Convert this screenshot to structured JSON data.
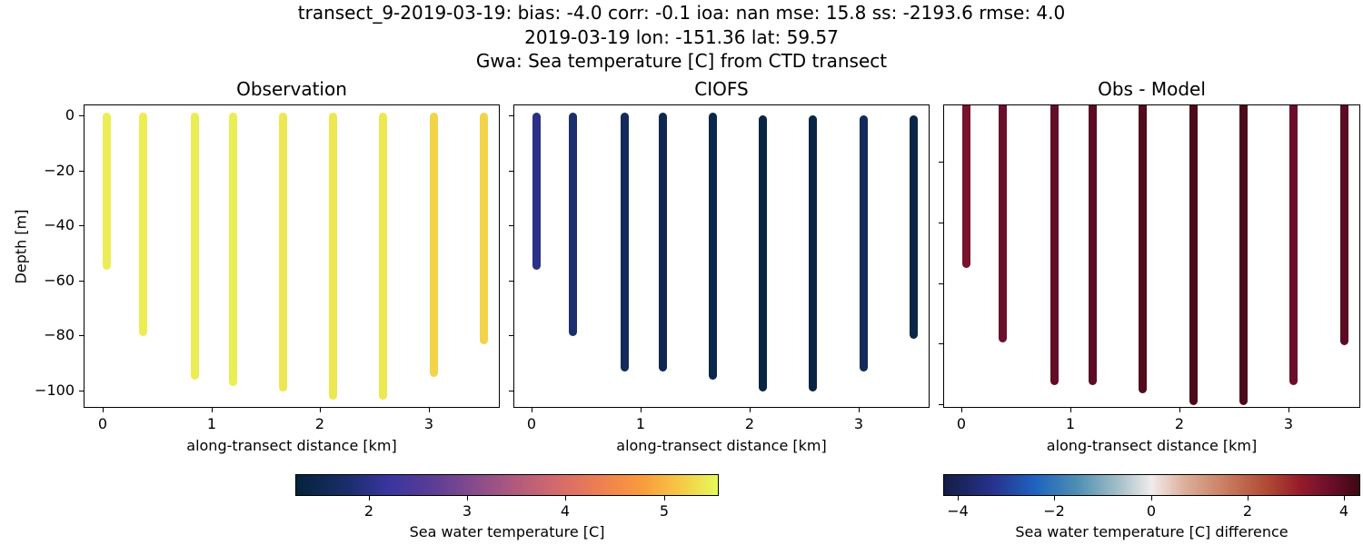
{
  "figure": {
    "suptitle_line1": "transect_9-2019-03-19: bias: -4.0  corr: -0.1  ioa: nan  mse: 15.8  ss: -2193.6  rmse: 4.0",
    "suptitle_line2": "2019-03-19 lon: -151.36 lat: 59.57",
    "suptitle_line3": "Gwa: Sea temperature [C] from CTD transect"
  },
  "panels": {
    "obs": {
      "title": "Observation",
      "xlabel": "along-transect distance [km]",
      "ylabel": "Depth [m]"
    },
    "model": {
      "title": "CIOFS",
      "xlabel": "along-transect distance [km]"
    },
    "diff": {
      "title": "Obs - Model",
      "xlabel": "along-transect distance [km]"
    }
  },
  "ticks": {
    "y": [
      "0",
      "−20",
      "−40",
      "−60",
      "−80",
      "−100"
    ],
    "x": [
      "0",
      "1",
      "2",
      "3"
    ]
  },
  "colorbars": {
    "temp": {
      "label": "Sea water temperature [C]",
      "ticks": [
        "2",
        "3",
        "4",
        "5"
      ],
      "range": [
        1.25,
        5.6
      ]
    },
    "diff": {
      "label": "Sea water temperature [C] difference",
      "ticks": [
        "−4",
        "−2",
        "0",
        "2",
        "4"
      ],
      "range": [
        -4.3,
        4.3
      ]
    }
  },
  "chart_data": [
    {
      "type": "scatter",
      "title": "Observation",
      "xlabel": "along-transect distance [km]",
      "ylabel": "Depth [m]",
      "xlim": [
        -0.2,
        3.6
      ],
      "ylim": [
        -105,
        4
      ],
      "colormap": "thermal",
      "casts": [
        {
          "x": 0.0,
          "depth_min": 0,
          "depth_max": -54,
          "temp": 5.5
        },
        {
          "x": 0.34,
          "depth_min": 0,
          "depth_max": -78,
          "temp": 5.5
        },
        {
          "x": 0.81,
          "depth_min": 0,
          "depth_max": -94,
          "temp": 5.5
        },
        {
          "x": 1.16,
          "depth_min": 0,
          "depth_max": -96,
          "temp": 5.5
        },
        {
          "x": 1.62,
          "depth_min": 0,
          "depth_max": -98,
          "temp": 5.45
        },
        {
          "x": 2.08,
          "depth_min": 0,
          "depth_max": -101,
          "temp": 5.45
        },
        {
          "x": 2.54,
          "depth_min": 0,
          "depth_max": -101,
          "temp": 5.45
        },
        {
          "x": 3.0,
          "depth_min": 0,
          "depth_max": -93,
          "temp": 5.3
        },
        {
          "x": 3.46,
          "depth_min": 0,
          "depth_max": -81,
          "temp": 5.3
        }
      ]
    },
    {
      "type": "scatter",
      "title": "CIOFS",
      "xlabel": "along-transect distance [km]",
      "xlim": [
        -0.2,
        3.6
      ],
      "ylim": [
        -105,
        4
      ],
      "colormap": "thermal",
      "casts": [
        {
          "x": 0.0,
          "depth_min": 0,
          "depth_max": -54,
          "temp": 2.0
        },
        {
          "x": 0.34,
          "depth_min": 0,
          "depth_max": -78,
          "temp": 1.8
        },
        {
          "x": 0.81,
          "depth_min": 0,
          "depth_max": -91,
          "temp": 1.6
        },
        {
          "x": 1.16,
          "depth_min": 0,
          "depth_max": -91,
          "temp": 1.5
        },
        {
          "x": 1.62,
          "depth_min": 0,
          "depth_max": -94,
          "temp": 1.45
        },
        {
          "x": 2.08,
          "depth_min": -1,
          "depth_max": -98,
          "temp": 1.35
        },
        {
          "x": 2.54,
          "depth_min": -1,
          "depth_max": -98,
          "temp": 1.35
        },
        {
          "x": 3.0,
          "depth_min": -1,
          "depth_max": -91,
          "temp": 1.6
        },
        {
          "x": 3.46,
          "depth_min": -1,
          "depth_max": -79,
          "temp": 1.4
        }
      ]
    },
    {
      "type": "scatter",
      "title": "Obs - Model",
      "xlabel": "along-transect distance [km]",
      "xlim": [
        -0.2,
        3.6
      ],
      "ylim": [
        -104,
        2
      ],
      "colormap": "balance",
      "casts": [
        {
          "x": 0.0,
          "depth_min": 2,
          "depth_max": -54,
          "diff": 3.5
        },
        {
          "x": 0.34,
          "depth_min": 2,
          "depth_max": -80,
          "diff": 3.7
        },
        {
          "x": 0.81,
          "depth_min": 2,
          "depth_max": -95,
          "diff": 3.8
        },
        {
          "x": 1.16,
          "depth_min": 2,
          "depth_max": -95,
          "diff": 3.9
        },
        {
          "x": 1.62,
          "depth_min": 2,
          "depth_max": -98,
          "diff": 4.0
        },
        {
          "x": 2.08,
          "depth_min": 2,
          "depth_max": -102,
          "diff": 4.1
        },
        {
          "x": 2.54,
          "depth_min": 2,
          "depth_max": -102,
          "diff": 4.1
        },
        {
          "x": 3.0,
          "depth_min": 2,
          "depth_max": -95,
          "diff": 3.7
        },
        {
          "x": 3.46,
          "depth_min": 2,
          "depth_max": -81,
          "diff": 3.9
        }
      ]
    }
  ]
}
